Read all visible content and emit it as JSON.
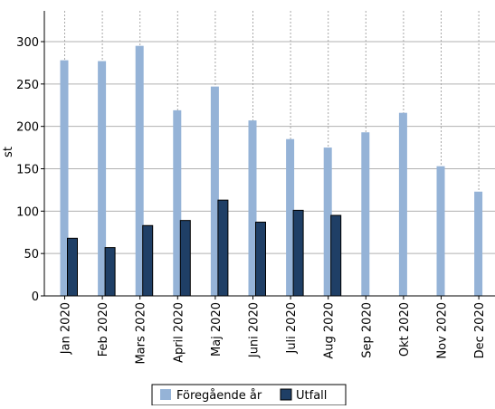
{
  "chart_data": {
    "type": "bar",
    "title": "",
    "xlabel": "",
    "ylabel": "st",
    "ylim": [
      0,
      300
    ],
    "yticks": [
      0,
      50,
      100,
      150,
      200,
      250,
      300
    ],
    "grid": {
      "horizontal": true,
      "vertical": true
    },
    "legend_position": "bottom",
    "categories": [
      "Jan 2020",
      "Feb 2020",
      "Mars 2020",
      "April 2020",
      "Maj 2020",
      "Juni 2020",
      "Juli 2020",
      "Aug 2020",
      "Sep 2020",
      "Okt 2020",
      "Nov 2020",
      "Dec 2020"
    ],
    "series": [
      {
        "name": "Föregående år",
        "color": "#95b3d7",
        "values": [
          278,
          277,
          295,
          219,
          247,
          207,
          185,
          175,
          193,
          216,
          153,
          123
        ]
      },
      {
        "name": "Utfall",
        "color": "#1f3f66",
        "values": [
          68,
          57,
          83,
          89,
          113,
          87,
          101,
          95,
          null,
          null,
          null,
          null
        ]
      }
    ]
  }
}
